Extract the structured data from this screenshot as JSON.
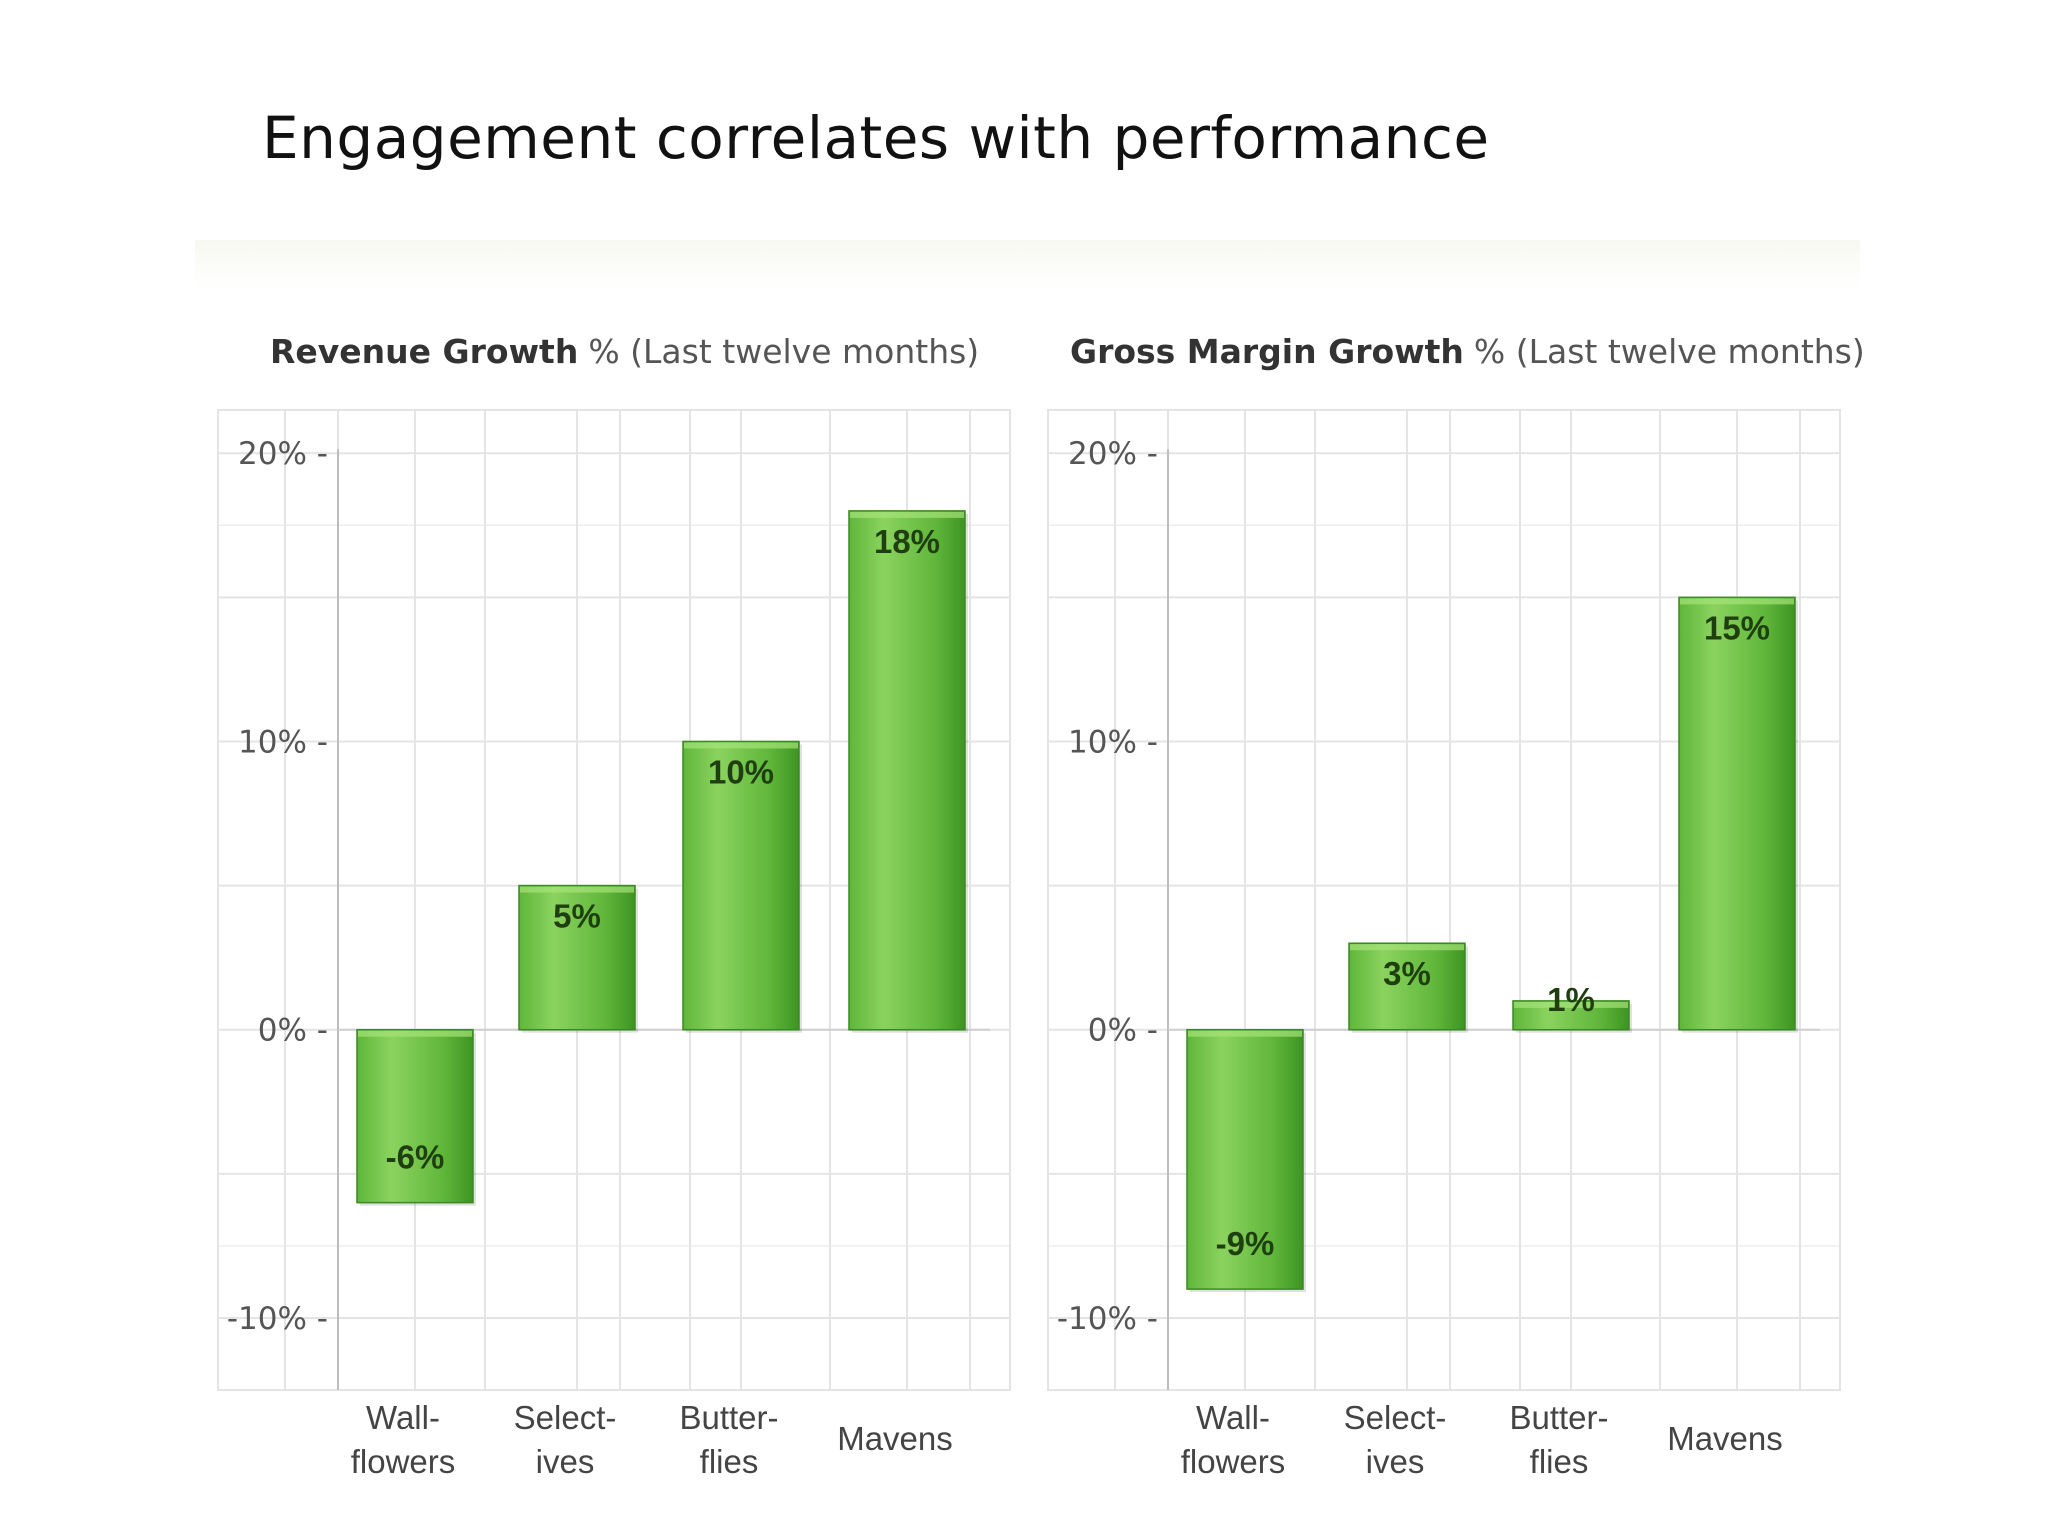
{
  "slide": {
    "title": "Engagement correlates with performance"
  },
  "colors": {
    "bar_light": "#8bd35f",
    "bar_mid": "#5fb63a",
    "bar_dark": "#3e9423",
    "grid": "#e4e4e4",
    "axis": "#bdbdbd",
    "label_text": "#1f3f10"
  },
  "chart_data": [
    {
      "type": "bar",
      "title": "Revenue Growth",
      "title_suffix": "% (Last twelve months)",
      "categories": [
        [
          "Wall-",
          "flowers"
        ],
        [
          "Select-",
          "ives"
        ],
        [
          "Butter-",
          "flies"
        ],
        [
          "Mavens"
        ]
      ],
      "values": [
        -6,
        5,
        10,
        18
      ],
      "data_labels": [
        "-6%",
        "5%",
        "10%",
        "18%"
      ],
      "ylim": [
        -12.5,
        21.5
      ],
      "yticks": [
        -10,
        0,
        10,
        20
      ],
      "ytick_labels": [
        "-10%",
        "0%",
        "10%",
        "20%"
      ],
      "grid": true,
      "legend": "none"
    },
    {
      "type": "bar",
      "title": "Gross Margin Growth",
      "title_suffix": "% (Last twelve months)",
      "categories": [
        [
          "Wall-",
          "flowers"
        ],
        [
          "Select-",
          "ives"
        ],
        [
          "Butter-",
          "flies"
        ],
        [
          "Mavens"
        ]
      ],
      "values": [
        -9,
        3,
        1,
        15
      ],
      "data_labels": [
        "-9%",
        "3%",
        "1%",
        "15%"
      ],
      "ylim": [
        -12.5,
        21.5
      ],
      "yticks": [
        -10,
        0,
        10,
        20
      ],
      "ytick_labels": [
        "-10%",
        "0%",
        "10%",
        "20%"
      ],
      "grid": true,
      "legend": "none"
    }
  ]
}
